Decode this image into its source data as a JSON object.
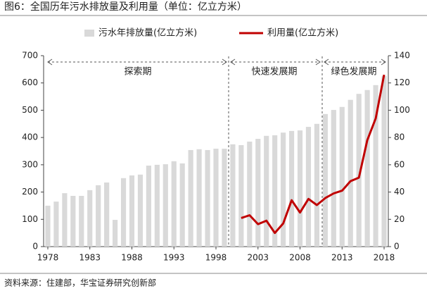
{
  "chart_data": {
    "type": "bar-line",
    "title": "图6：全国历年污水排放量及利用量（单位：亿立方米）",
    "source": "资料来源：住建部，华宝证券研究创新部",
    "categories": [
      "1978",
      null,
      null,
      null,
      null,
      "1983",
      null,
      null,
      null,
      null,
      "1988",
      null,
      null,
      null,
      null,
      "1993",
      null,
      null,
      null,
      null,
      "1998",
      null,
      null,
      null,
      null,
      "2003",
      null,
      null,
      null,
      null,
      "2008",
      null,
      null,
      null,
      null,
      "2013",
      null,
      null,
      null,
      null,
      "2018"
    ],
    "series": [
      {
        "name": "污水年排放量(亿立方米)",
        "color": "#d9d9d9",
        "kind": "bar",
        "axis": "y",
        "values": [
          150,
          165,
          196,
          186,
          186,
          207,
          225,
          235,
          98,
          251,
          261,
          264,
          297,
          300,
          302,
          313,
          305,
          354,
          357,
          354,
          359,
          359,
          375,
          372,
          385,
          395,
          406,
          408,
          418,
          424,
          426,
          439,
          450,
          486,
          501,
          512,
          538,
          560,
          574,
          592,
          625
        ]
      },
      {
        "name": "利用量(亿立方米)",
        "color": "#c00000",
        "kind": "line",
        "axis": "y2",
        "values": [
          null,
          null,
          null,
          null,
          null,
          null,
          null,
          null,
          null,
          null,
          null,
          null,
          null,
          null,
          null,
          null,
          null,
          null,
          null,
          null,
          null,
          null,
          null,
          21,
          23,
          16.5,
          19,
          10,
          17,
          34,
          25,
          35,
          30.5,
          35.6,
          39,
          41,
          48,
          50.6,
          78,
          94,
          126
        ]
      }
    ],
    "periods": [
      "探索期",
      "快速发展期",
      "绿色发展期"
    ],
    "ylim": [
      0,
      700
    ],
    "yticks": [
      0,
      100,
      200,
      300,
      400,
      500,
      600,
      700
    ],
    "y2lim": [
      0,
      140
    ],
    "y2ticks": [
      0,
      20,
      40,
      60,
      80,
      100,
      120,
      140
    ]
  }
}
